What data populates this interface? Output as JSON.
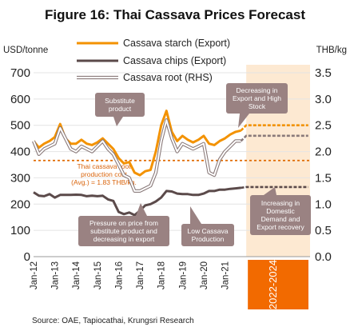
{
  "title": "Figure 16: Thai Cassava Prices Forecast",
  "source": "Source: OAE, Tapiocathai, Krungsri Research",
  "chart_data": {
    "type": "line",
    "y_left_label": "USD/tonne",
    "y_right_label": "THB/kg",
    "ylim_left": [
      0,
      700
    ],
    "ylim_right": [
      0.0,
      3.5
    ],
    "y_left_ticks": [
      "0",
      "100",
      "200",
      "300",
      "400",
      "500",
      "600",
      "700"
    ],
    "y_right_ticks": [
      "0.0",
      "0.5",
      "1.0",
      "1.5",
      "2.0",
      "2.5",
      "3.0",
      "3.5"
    ],
    "x_tick_labels": [
      "Jan-12",
      "Jan-13",
      "Jan-14",
      "Jan-15",
      "Jan-16",
      "Jan-17",
      "Jan-18",
      "Jan-19",
      "Jan-20",
      "Jan-21"
    ],
    "forecast_label": "2022-2024",
    "series": [
      {
        "name": "Cassava starch (Export)",
        "axis": "left",
        "color": "#f39200",
        "x": [
          "2012-01",
          "2012-04",
          "2012-07",
          "2012-10",
          "2013-01",
          "2013-04",
          "2013-07",
          "2013-10",
          "2014-01",
          "2014-04",
          "2014-07",
          "2014-10",
          "2015-01",
          "2015-04",
          "2015-07",
          "2015-10",
          "2016-01",
          "2016-04",
          "2016-07",
          "2016-10",
          "2017-01",
          "2017-04",
          "2017-07",
          "2017-10",
          "2018-01",
          "2018-04",
          "2018-07",
          "2018-10",
          "2019-01",
          "2019-04",
          "2019-07",
          "2019-10",
          "2020-01",
          "2020-04",
          "2020-07",
          "2020-10",
          "2021-01",
          "2021-04",
          "2021-07",
          "2021-10"
        ],
        "values": [
          440,
          415,
          430,
          440,
          455,
          505,
          450,
          430,
          430,
          445,
          430,
          425,
          435,
          450,
          430,
          410,
          375,
          355,
          360,
          320,
          310,
          325,
          330,
          400,
          500,
          555,
          475,
          440,
          460,
          445,
          435,
          445,
          460,
          430,
          425,
          440,
          450,
          465,
          475,
          480
        ]
      },
      {
        "name": "Cassava chips (Export)",
        "axis": "left",
        "color": "#5b4a4a",
        "x": [
          "2012-01",
          "2012-04",
          "2012-07",
          "2012-10",
          "2013-01",
          "2013-04",
          "2013-07",
          "2013-10",
          "2014-01",
          "2014-04",
          "2014-07",
          "2014-10",
          "2015-01",
          "2015-04",
          "2015-07",
          "2015-10",
          "2016-01",
          "2016-04",
          "2016-07",
          "2016-10",
          "2017-01",
          "2017-04",
          "2017-07",
          "2017-10",
          "2018-01",
          "2018-04",
          "2018-07",
          "2018-10",
          "2019-01",
          "2019-04",
          "2019-07",
          "2019-10",
          "2020-01",
          "2020-04",
          "2020-07",
          "2020-10",
          "2021-01",
          "2021-04",
          "2021-07",
          "2021-10"
        ],
        "values": [
          245,
          232,
          230,
          238,
          225,
          235,
          235,
          235,
          236,
          235,
          230,
          232,
          230,
          232,
          218,
          212,
          170,
          162,
          168,
          158,
          175,
          195,
          200,
          210,
          225,
          250,
          248,
          240,
          238,
          238,
          235,
          235,
          240,
          250,
          250,
          255,
          255,
          258,
          260,
          262
        ]
      },
      {
        "name": "Cassava root (RHS)",
        "axis": "right",
        "color": "#c8b5b5",
        "x": [
          "2012-01",
          "2012-04",
          "2012-07",
          "2012-10",
          "2013-01",
          "2013-04",
          "2013-07",
          "2013-10",
          "2014-01",
          "2014-04",
          "2014-07",
          "2014-10",
          "2015-01",
          "2015-04",
          "2015-07",
          "2015-10",
          "2016-01",
          "2016-04",
          "2016-07",
          "2016-10",
          "2017-01",
          "2017-04",
          "2017-07",
          "2017-10",
          "2018-01",
          "2018-04",
          "2018-07",
          "2018-10",
          "2019-01",
          "2019-04",
          "2019-07",
          "2019-10",
          "2020-01",
          "2020-04",
          "2020-07",
          "2020-10",
          "2021-01",
          "2021-04",
          "2021-07",
          "2021-10"
        ],
        "values": [
          2.2,
          1.95,
          2.05,
          2.1,
          2.15,
          2.45,
          2.25,
          2.05,
          2.0,
          2.1,
          2.05,
          2.0,
          2.1,
          2.2,
          2.05,
          1.95,
          1.75,
          1.55,
          1.5,
          1.25,
          1.25,
          1.3,
          1.35,
          1.6,
          2.2,
          2.6,
          2.25,
          2.0,
          2.15,
          2.1,
          2.05,
          2.1,
          2.15,
          1.6,
          1.55,
          1.85,
          2.0,
          2.1,
          2.2,
          2.2
        ]
      }
    ],
    "forecast": {
      "range": [
        "2022-01",
        "2024-12"
      ],
      "starch": 500,
      "chips": 265,
      "root_rhs": 2.3
    },
    "reference_line": {
      "value_rhs": 1.83,
      "color": "#e06a00",
      "label": "Thai cassava root production cost (Avg.) = 1.83 THB/kg"
    },
    "annotations": [
      {
        "text": [
          "Substitute",
          "product"
        ]
      },
      {
        "text": [
          "Decreasing in",
          "Export and High",
          "Stock"
        ]
      },
      {
        "text": [
          "Pressure on price from",
          "substitute product and",
          "decreasing in export"
        ]
      },
      {
        "text": [
          "Low Cassava",
          "Production"
        ]
      },
      {
        "text": [
          "Increasing in",
          "Domestic",
          "Demand and",
          "Export recovery"
        ]
      }
    ]
  },
  "note_lines": [
    "Thai cassava root",
    "production cost",
    "(Avg.) = 1.83 THB/kg."
  ]
}
